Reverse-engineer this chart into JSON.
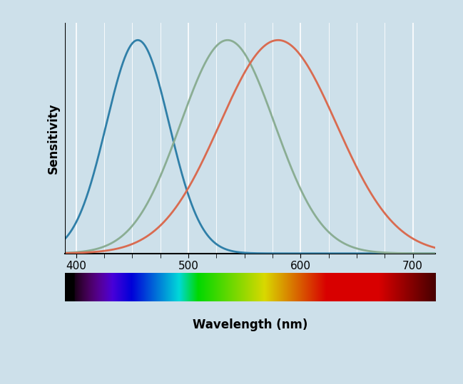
{
  "ylabel": "Sensitivity",
  "xlabel": "Wavelength (nm)",
  "xlim": [
    390,
    720
  ],
  "ylim": [
    0,
    1.08
  ],
  "xticks": [
    400,
    500,
    600,
    700
  ],
  "background_color": "#cde0ea",
  "grid_color": "#ffffff",
  "curves": [
    {
      "peak": 455,
      "sigma": 28,
      "color": "#2f7fa8",
      "linewidth": 2.0
    },
    {
      "peak": 535,
      "sigma": 42,
      "color": "#8aad93",
      "linewidth": 2.0
    },
    {
      "peak": 580,
      "sigma": 52,
      "color": "#d96b50",
      "linewidth": 2.0
    }
  ],
  "border_color": "#3a8fba",
  "border_linewidth": 4,
  "fig_width": 6.49,
  "fig_height": 5.39,
  "dpi": 100
}
